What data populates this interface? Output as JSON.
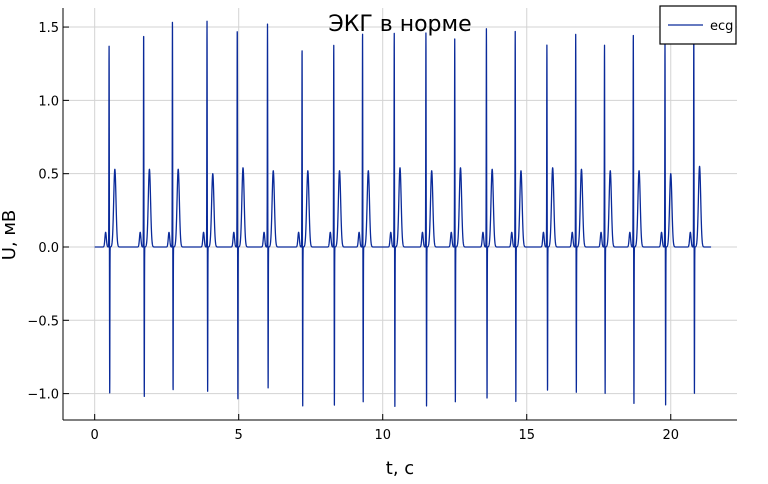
{
  "chart_data": {
    "type": "line",
    "title": "ЭКГ в норме",
    "xlabel": "t, с",
    "ylabel": "U, мВ",
    "xlim": [
      -1.1,
      22.3
    ],
    "ylim": [
      -1.18,
      1.63
    ],
    "xticks": [
      0,
      5,
      10,
      15,
      20
    ],
    "xtick_labels": [
      "0",
      "5",
      "10",
      "15",
      "20"
    ],
    "yticks": [
      -1.0,
      -0.5,
      0.0,
      0.5,
      1.0,
      1.5
    ],
    "ytick_labels": [
      "−1.0",
      "−0.5",
      "0.0",
      "0.5",
      "1.0",
      "1.5"
    ],
    "grid": true,
    "legend": {
      "position": "top-right",
      "entries": [
        "ecg"
      ]
    },
    "series": [
      {
        "name": "ecg",
        "color": "#0a2a9a",
        "t_range": [
          0.0,
          21.4
        ],
        "baseline": 0.0,
        "beats": [
          {
            "t": 0.5,
            "r": 1.37,
            "s": -1.0,
            "p": 0.1,
            "t_wave": 0.53
          },
          {
            "t": 1.7,
            "r": 1.47,
            "s": -1.03,
            "p": 0.1,
            "t_wave": 0.53
          },
          {
            "t": 2.7,
            "r": 1.55,
            "s": -1.0,
            "p": 0.1,
            "t_wave": 0.53
          },
          {
            "t": 3.9,
            "r": 1.54,
            "s": -0.99,
            "p": 0.1,
            "t_wave": 0.5
          },
          {
            "t": 4.95,
            "r": 1.5,
            "s": -1.05,
            "p": 0.1,
            "t_wave": 0.54
          },
          {
            "t": 6.0,
            "r": 1.52,
            "s": -0.97,
            "p": 0.1,
            "t_wave": 0.52
          },
          {
            "t": 7.2,
            "r": 1.36,
            "s": -1.09,
            "p": 0.1,
            "t_wave": 0.52
          },
          {
            "t": 8.3,
            "r": 1.38,
            "s": -1.08,
            "p": 0.1,
            "t_wave": 0.52
          },
          {
            "t": 9.3,
            "r": 1.47,
            "s": -1.06,
            "p": 0.1,
            "t_wave": 0.52
          },
          {
            "t": 10.4,
            "r": 1.46,
            "s": -1.09,
            "p": 0.1,
            "t_wave": 0.54
          },
          {
            "t": 11.5,
            "r": 1.46,
            "s": -1.1,
            "p": 0.1,
            "t_wave": 0.52
          },
          {
            "t": 12.5,
            "r": 1.42,
            "s": -1.06,
            "p": 0.1,
            "t_wave": 0.54
          },
          {
            "t": 13.6,
            "r": 1.49,
            "s": -1.05,
            "p": 0.1,
            "t_wave": 0.53
          },
          {
            "t": 14.6,
            "r": 1.47,
            "s": -1.06,
            "p": 0.1,
            "t_wave": 0.52
          },
          {
            "t": 15.7,
            "r": 1.38,
            "s": -1.0,
            "p": 0.1,
            "t_wave": 0.54
          },
          {
            "t": 16.7,
            "r": 1.45,
            "s": -1.0,
            "p": 0.1,
            "t_wave": 0.53
          },
          {
            "t": 17.7,
            "r": 1.38,
            "s": -1.0,
            "p": 0.1,
            "t_wave": 0.52
          },
          {
            "t": 18.7,
            "r": 1.46,
            "s": -1.07,
            "p": 0.1,
            "t_wave": 0.52
          },
          {
            "t": 19.8,
            "r": 1.4,
            "s": -1.08,
            "p": 0.1,
            "t_wave": 0.5
          },
          {
            "t": 20.8,
            "r": 1.53,
            "s": -1.0,
            "p": 0.1,
            "t_wave": 0.55
          }
        ]
      }
    ]
  }
}
